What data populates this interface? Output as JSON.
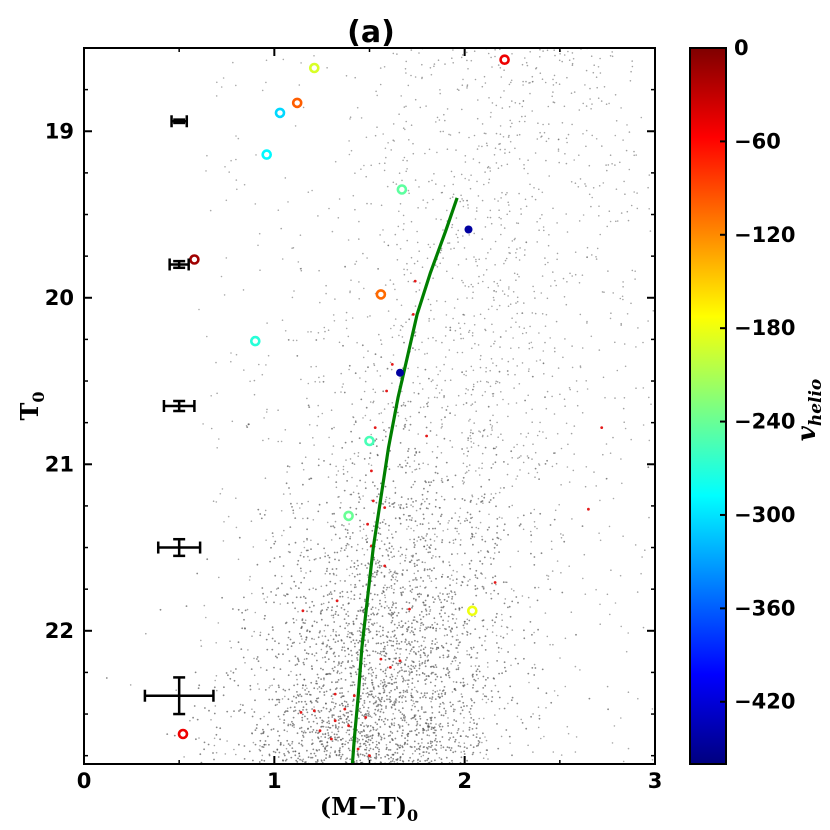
{
  "chart_data": {
    "type": "scatter",
    "title": "(a)",
    "xlabel": "(M−T)",
    "xlabel_subscript": "0",
    "ylabel": "T",
    "ylabel_subscript": "0",
    "xlim": [
      0,
      3
    ],
    "ylim": [
      22.8,
      18.5
    ],
    "y_inverted": true,
    "x_ticks": [
      0,
      1,
      2,
      3
    ],
    "x_tick_labels": [
      "0",
      "1",
      "2",
      "3"
    ],
    "y_ticks": [
      19,
      20,
      21,
      22
    ],
    "y_tick_labels": [
      "19",
      "20",
      "21",
      "22"
    ],
    "colorbar": {
      "label": "v",
      "label_subscript": "helio",
      "range": [
        -460,
        0
      ],
      "ticks": [
        0,
        -60,
        -120,
        -180,
        -240,
        -300,
        -360,
        -420
      ],
      "tick_labels": [
        "0",
        "−60",
        "−120",
        "−180",
        "−240",
        "−300",
        "−360",
        "−420"
      ],
      "colormap": [
        "#00007f",
        "#0000ff",
        "#007fff",
        "#00ffff",
        "#7fff7f",
        "#ffff00",
        "#ff7f00",
        "#ff0000",
        "#7f0000"
      ]
    },
    "background_field": {
      "description": "dense grey field-star scatter",
      "color": "#555555"
    },
    "velocity_stars": [
      {
        "x": 2.21,
        "y": 18.57,
        "v": -50,
        "marker": "ring"
      },
      {
        "x": 1.21,
        "y": 18.62,
        "v": -190,
        "marker": "ring"
      },
      {
        "x": 1.12,
        "y": 18.83,
        "v": -100,
        "marker": "ring"
      },
      {
        "x": 1.03,
        "y": 18.89,
        "v": -305,
        "marker": "ring"
      },
      {
        "x": 0.96,
        "y": 19.14,
        "v": -290,
        "marker": "ring"
      },
      {
        "x": 1.67,
        "y": 19.35,
        "v": -245,
        "marker": "ring"
      },
      {
        "x": 2.02,
        "y": 19.59,
        "v": -445,
        "marker": "dot"
      },
      {
        "x": 0.58,
        "y": 19.77,
        "v": -15,
        "marker": "ring"
      },
      {
        "x": 1.56,
        "y": 19.98,
        "v": -105,
        "marker": "ring"
      },
      {
        "x": 0.9,
        "y": 20.26,
        "v": -270,
        "marker": "ring"
      },
      {
        "x": 1.66,
        "y": 20.45,
        "v": -445,
        "marker": "dot"
      },
      {
        "x": 1.5,
        "y": 20.86,
        "v": -255,
        "marker": "ring"
      },
      {
        "x": 1.39,
        "y": 21.31,
        "v": -240,
        "marker": "ring"
      },
      {
        "x": 2.04,
        "y": 21.88,
        "v": -180,
        "marker": "ring"
      },
      {
        "x": 0.52,
        "y": 22.62,
        "v": -50,
        "marker": "ring"
      }
    ],
    "member_stars": {
      "description": "small red points along the isochrone",
      "color": "#e41a1a",
      "points": [
        [
          1.74,
          19.9
        ],
        [
          1.73,
          20.1
        ],
        [
          1.62,
          20.4
        ],
        [
          1.59,
          20.56
        ],
        [
          1.53,
          20.78
        ],
        [
          1.8,
          20.83
        ],
        [
          1.51,
          21.04
        ],
        [
          1.52,
          21.22
        ],
        [
          1.58,
          21.26
        ],
        [
          1.49,
          21.36
        ],
        [
          1.51,
          21.49
        ],
        [
          1.58,
          21.61
        ],
        [
          2.72,
          20.78
        ],
        [
          2.65,
          21.27
        ],
        [
          2.16,
          21.71
        ],
        [
          1.71,
          21.87
        ],
        [
          1.15,
          21.88
        ],
        [
          1.33,
          21.82
        ],
        [
          1.56,
          22.17
        ],
        [
          1.66,
          22.18
        ],
        [
          1.61,
          22.22
        ],
        [
          1.32,
          22.38
        ],
        [
          1.42,
          22.39
        ],
        [
          1.21,
          22.48
        ],
        [
          1.14,
          22.49
        ],
        [
          1.37,
          22.47
        ],
        [
          1.32,
          22.54
        ],
        [
          1.48,
          22.52
        ],
        [
          1.39,
          22.57
        ],
        [
          1.24,
          22.6
        ],
        [
          1.3,
          22.65
        ],
        [
          1.44,
          22.71
        ],
        [
          1.5,
          22.75
        ]
      ]
    },
    "isochrone": {
      "color": "#007f00",
      "points": [
        [
          1.96,
          19.4
        ],
        [
          1.9,
          19.6
        ],
        [
          1.82,
          19.85
        ],
        [
          1.75,
          20.1
        ],
        [
          1.7,
          20.35
        ],
        [
          1.65,
          20.6
        ],
        [
          1.6,
          20.9
        ],
        [
          1.56,
          21.2
        ],
        [
          1.52,
          21.5
        ],
        [
          1.49,
          21.8
        ],
        [
          1.46,
          22.1
        ],
        [
          1.44,
          22.4
        ],
        [
          1.42,
          22.65
        ],
        [
          1.41,
          22.8
        ]
      ]
    },
    "error_bars": [
      {
        "x": 0.5,
        "y": 18.94,
        "xerr": 0.04,
        "yerr": 0.01
      },
      {
        "x": 0.5,
        "y": 19.8,
        "xerr": 0.05,
        "yerr": 0.02
      },
      {
        "x": 0.5,
        "y": 20.65,
        "xerr": 0.08,
        "yerr": 0.03
      },
      {
        "x": 0.5,
        "y": 21.5,
        "xerr": 0.11,
        "yerr": 0.05
      },
      {
        "x": 0.5,
        "y": 22.39,
        "xerr": 0.18,
        "yerr": 0.11
      }
    ]
  }
}
